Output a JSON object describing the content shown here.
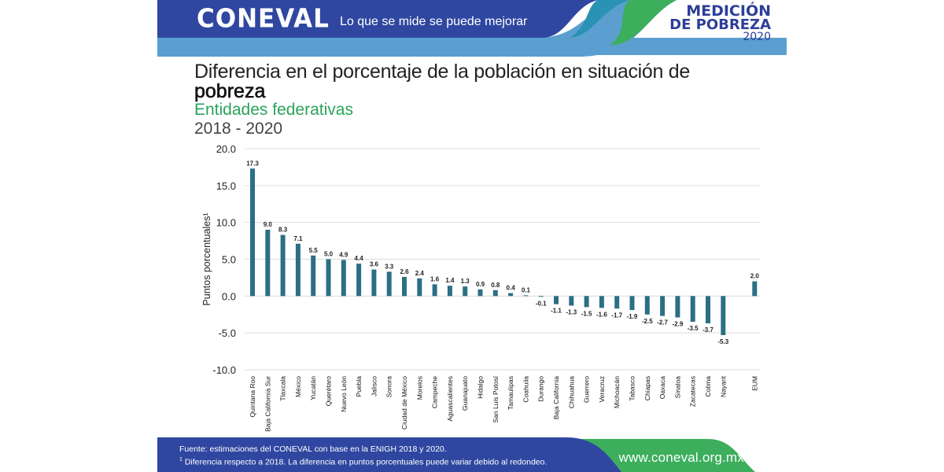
{
  "header": {
    "logo": "CONEVAL",
    "tagline": "Lo que se mide se puede mejorar",
    "brand_line1": "MEDICIÓN",
    "brand_line2": "DE POBREZA",
    "brand_line3": "2020",
    "colors": {
      "dark_blue": "#2f47a0",
      "light_blue": "#5b9fd0",
      "teal": "#2a93b5",
      "green": "#3cae5c"
    }
  },
  "titles": {
    "line1": "Diferencia en el porcentaje de la población en situación de",
    "line2": "pobreza",
    "subtitle": "Entidades federativas",
    "period": "2018 - 2020"
  },
  "chart_data": {
    "type": "bar",
    "title": "Diferencia en el porcentaje de la población en situación de pobreza",
    "subtitle": "Entidades federativas 2018 - 2020",
    "xlabel": "",
    "ylabel": "Puntos porcentuales¹",
    "ylim": [
      -10,
      20
    ],
    "yticks": [
      20,
      15,
      10,
      5,
      0,
      -5,
      -10
    ],
    "ytick_labels": [
      "20.0",
      "15.0",
      "10.0",
      "5.0",
      "0.0",
      "-5.0",
      "-10.0"
    ],
    "grid": true,
    "bar_color": "#2b6f84",
    "categories": [
      "Quintana Roo",
      "Baja California Sur",
      "Tlaxcala",
      "México",
      "Yucatán",
      "Querétaro",
      "Nuevo León",
      "Puebla",
      "Jalisco",
      "Sonora",
      "Ciudad de México",
      "Morelos",
      "Campeche",
      "Aguascalientes",
      "Guanajuato",
      "Hidalgo",
      "San Luis Potosí",
      "Tamaulipas",
      "Coahuila",
      "Durango",
      "Baja California",
      "Chihuahua",
      "Guerrero",
      "Veracruz",
      "Michoacán",
      "Tabasco",
      "Chiapas",
      "Oaxaca",
      "Sinaloa",
      "Zacatecas",
      "Colima",
      "Nayarit",
      "EUM"
    ],
    "values": [
      17.3,
      9.0,
      8.3,
      7.1,
      5.5,
      5.0,
      4.9,
      4.4,
      3.6,
      3.3,
      2.6,
      2.4,
      1.6,
      1.4,
      1.3,
      0.9,
      0.8,
      0.4,
      0.1,
      -0.1,
      -1.1,
      -1.3,
      -1.5,
      -1.6,
      -1.7,
      -1.9,
      -2.5,
      -2.7,
      -2.9,
      -3.5,
      -3.7,
      -5.3,
      2.0
    ],
    "value_labels": [
      "17.3",
      "9.0",
      "8.3",
      "7.1",
      "5.5",
      "5.0",
      "4.9",
      "4.4",
      "3.6",
      "3.3",
      "2.6",
      "2.4",
      "1.6",
      "1.4",
      "1.3",
      "0.9",
      "0.8",
      "0.4",
      "0.1",
      "-0.1",
      "-1.1",
      "-1.3",
      "-1.5",
      "-1.6",
      "-1.7",
      "-1.9",
      "-2.5",
      "-2.7",
      "-2.9",
      "-3.5",
      "-3.7",
      "-5.3",
      "2.0"
    ],
    "gap_before_last": true
  },
  "footer": {
    "source": "Fuente: estimaciones del CONEVAL con base en la ENIGH 2018 y 2020.",
    "note_marker": "1",
    "note": " Diferencia respecto a 2018. La diferencia en puntos porcentuales puede variar debido al redondeo.",
    "url": "www.coneval.org.mx"
  }
}
